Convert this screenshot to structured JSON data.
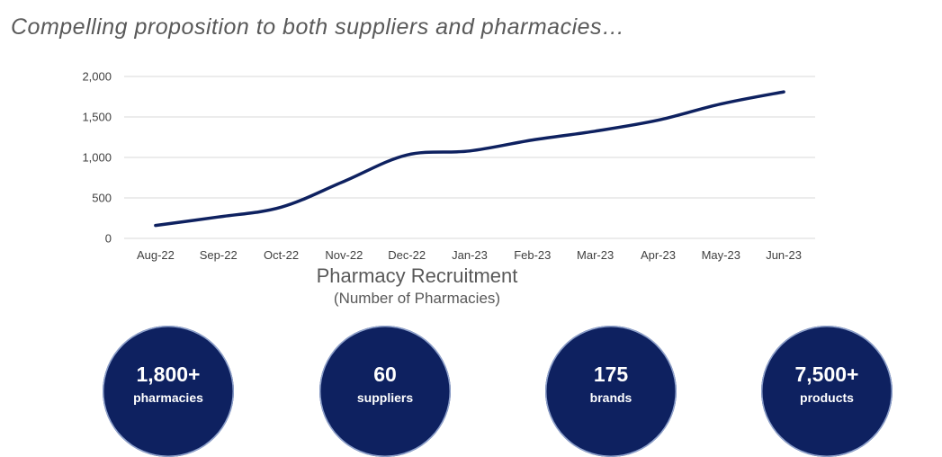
{
  "headline": "Compelling proposition to both suppliers and pharmacies…",
  "chart_data": {
    "type": "line",
    "title": "Pharmacy Recruitment",
    "subtitle": "(Number of Pharmacies)",
    "categories": [
      "Aug-22",
      "Sep-22",
      "Oct-22",
      "Nov-22",
      "Dec-22",
      "Jan-23",
      "Feb-23",
      "Mar-23",
      "Apr-23",
      "May-23",
      "Jun-23"
    ],
    "series": [
      {
        "values": [
          160,
          265,
          385,
          705,
          1030,
          1080,
          1215,
          1325,
          1460,
          1660,
          1810
        ],
        "color": "#0e2160"
      }
    ],
    "y_ticks": [
      "0",
      "500",
      "1,000",
      "1,500",
      "2,000"
    ],
    "y_tick_values": [
      0,
      500,
      1000,
      1500,
      2000
    ],
    "ylim": [
      0,
      2000
    ],
    "grid": true,
    "legend": "none"
  },
  "stats": [
    {
      "number": "1,800+",
      "label": "pharmacies"
    },
    {
      "number": "60",
      "label": "suppliers"
    },
    {
      "number": "175",
      "label": "brands"
    },
    {
      "number": "7,500+",
      "label": "products"
    }
  ]
}
